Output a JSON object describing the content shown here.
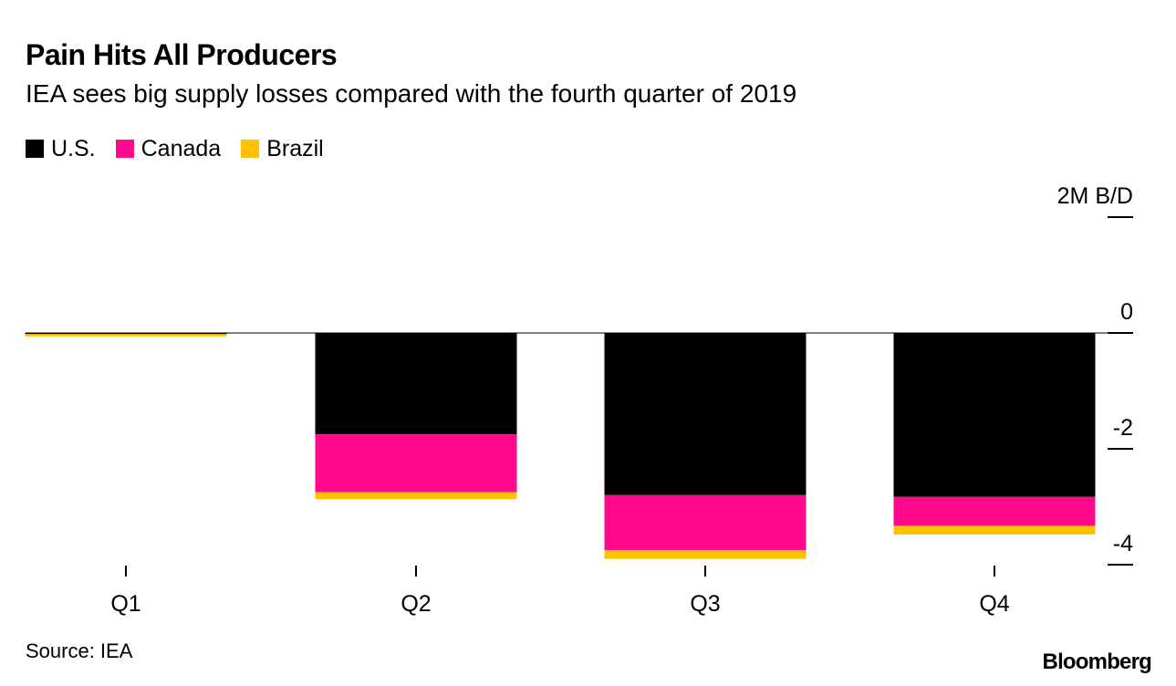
{
  "header": {
    "title": "Pain Hits All Producers",
    "subtitle": "IEA sees big supply losses compared with the fourth quarter of 2019"
  },
  "legend": [
    {
      "label": "U.S.",
      "color": "#000000"
    },
    {
      "label": "Canada",
      "color": "#ff0a8c"
    },
    {
      "label": "Brazil",
      "color": "#ffc200"
    }
  ],
  "chart_data": {
    "type": "bar",
    "stacked": true,
    "categories": [
      "Q1",
      "Q2",
      "Q3",
      "Q4"
    ],
    "series": [
      {
        "name": "U.S.",
        "color": "#000000",
        "values": [
          -0.02,
          -1.75,
          -2.8,
          -2.83
        ]
      },
      {
        "name": "Canada",
        "color": "#ff0a8c",
        "values": [
          0,
          -1.0,
          -0.95,
          -0.5
        ]
      },
      {
        "name": "Brazil",
        "color": "#ffc200",
        "values": [
          -0.04,
          -0.12,
          -0.15,
          -0.15
        ]
      }
    ],
    "y_axis": {
      "position": "right",
      "ylim": [
        -4,
        2
      ],
      "ticks": [
        {
          "value": 2,
          "label": "2M B/D"
        },
        {
          "value": 0,
          "label": "0"
        },
        {
          "value": -2,
          "label": "-2"
        },
        {
          "value": -4,
          "label": "-4"
        }
      ]
    },
    "title": "Pain Hits All Producers",
    "xlabel": "",
    "ylabel": ""
  },
  "footer": {
    "source": "Source: IEA",
    "brand": "Bloomberg"
  }
}
